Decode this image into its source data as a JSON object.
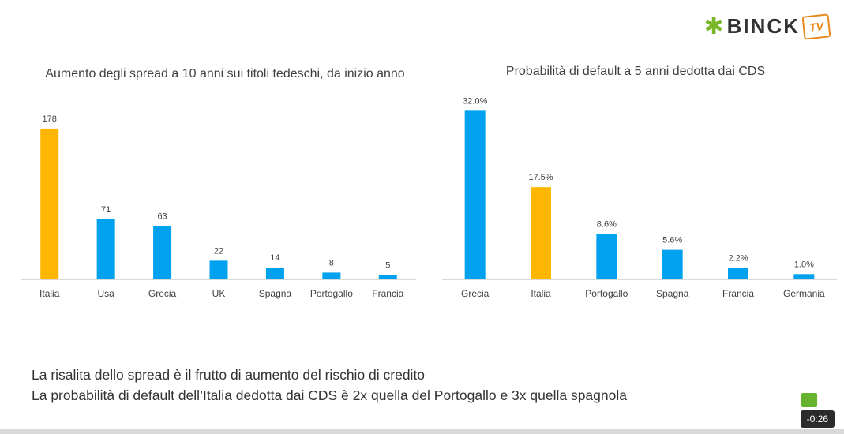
{
  "logo": {
    "name": "BINCK",
    "badge": "TV",
    "star_color": "#7ab829",
    "badge_color": "#e8891c"
  },
  "chart_data": [
    {
      "type": "bar",
      "title": "Aumento degli spread a 10 anni sui titoli tedeschi, da inizio anno",
      "categories": [
        "Italia",
        "Usa",
        "Grecia",
        "UK",
        "Spagna",
        "Portogallo",
        "Francia"
      ],
      "values": [
        178,
        71,
        63,
        22,
        14,
        8,
        5
      ],
      "labels": [
        "178",
        "71",
        "63",
        "22",
        "14",
        "8",
        "5"
      ],
      "highlight": "Italia",
      "colors": {
        "default": "#00a2ef",
        "highlight": "#ffb703"
      },
      "ylim": [
        0,
        190
      ],
      "grid": false,
      "legend": "none"
    },
    {
      "type": "bar",
      "title": "Probabilità di default a 5 anni dedotta dai CDS",
      "categories": [
        "Grecia",
        "Italia",
        "Portogallo",
        "Spagna",
        "Francia",
        "Germania"
      ],
      "values": [
        32.0,
        17.5,
        8.6,
        5.6,
        2.2,
        1.0
      ],
      "labels": [
        "32.0%",
        "17.5%",
        "8.6%",
        "5.6%",
        "2.2%",
        "1.0%"
      ],
      "highlight": "Italia",
      "colors": {
        "default": "#00a2ef",
        "highlight": "#ffb703"
      },
      "ylim": [
        0,
        34
      ],
      "grid": false,
      "legend": "none"
    }
  ],
  "caption": {
    "line1": "La risalita dello spread è il frutto di aumento del rischio di credito",
    "line2": "La probabilità di default dell’Italia dedotta dai CDS è 2x quella del Portogallo e 3x quella spagnola"
  },
  "video": {
    "time_remaining": "-0:26"
  }
}
